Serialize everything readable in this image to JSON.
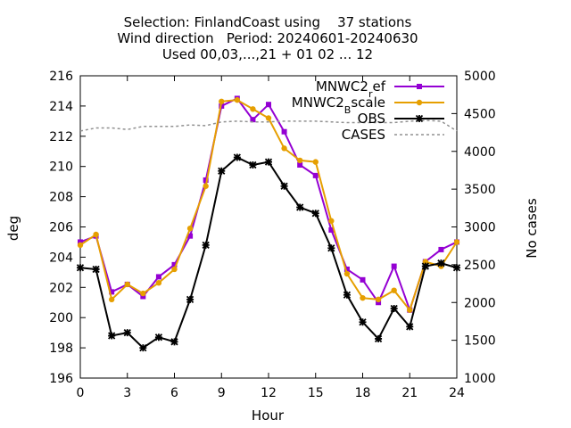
{
  "chart_data": {
    "type": "line",
    "title_lines": [
      "Selection: FinlandCoast using    37 stations",
      "Wind direction   Period: 20240601-20240630",
      "Used 00,03,...,21 + 01 02 ... 12"
    ],
    "xlabel": "Hour",
    "ylabel": "deg",
    "y2label": "No cases",
    "xlim": [
      0,
      24
    ],
    "ylim": [
      196,
      216
    ],
    "y2lim": [
      1000,
      5000
    ],
    "xticks": [
      0,
      3,
      6,
      9,
      12,
      15,
      18,
      21,
      24
    ],
    "yticks": [
      196,
      198,
      200,
      202,
      204,
      206,
      208,
      210,
      212,
      214,
      216
    ],
    "y2ticks": [
      1000,
      1500,
      2000,
      2500,
      3000,
      3500,
      4000,
      4500,
      5000
    ],
    "legend_position": "top-right",
    "x": [
      0,
      1,
      2,
      3,
      4,
      5,
      6,
      7,
      8,
      9,
      10,
      11,
      12,
      13,
      14,
      15,
      16,
      17,
      18,
      19,
      20,
      21,
      22,
      23,
      24
    ],
    "series": [
      {
        "name": "MNWC2_ref",
        "legend_main": "MNWC2",
        "legend_sub": "r",
        "legend_tail": "ef",
        "color": "#9400d3",
        "marker": "square",
        "axis": "y",
        "values": [
          205.0,
          205.4,
          201.7,
          202.2,
          201.4,
          202.7,
          203.5,
          205.4,
          209.1,
          214.0,
          214.5,
          213.1,
          214.1,
          212.3,
          210.1,
          209.4,
          205.8,
          203.2,
          202.5,
          201.0,
          203.4,
          200.5,
          203.7,
          204.5,
          205.0
        ]
      },
      {
        "name": "MNWC2_Bscale",
        "legend_main": "MNWC2",
        "legend_sub": "B",
        "legend_tail": "scale",
        "color": "#e69f00",
        "marker": "circle",
        "axis": "y",
        "values": [
          204.8,
          205.5,
          201.2,
          202.2,
          201.6,
          202.3,
          203.2,
          205.9,
          208.7,
          214.3,
          214.4,
          213.8,
          213.2,
          211.2,
          210.4,
          210.3,
          206.4,
          202.9,
          201.3,
          201.2,
          201.8,
          200.5,
          203.7,
          203.4,
          205.0
        ]
      },
      {
        "name": "OBS",
        "legend_main": "OBS",
        "legend_sub": "",
        "legend_tail": "",
        "color": "#000000",
        "marker": "star",
        "axis": "y",
        "values": [
          203.3,
          203.2,
          198.8,
          199.0,
          198.0,
          198.7,
          198.4,
          201.2,
          204.8,
          209.7,
          210.6,
          210.1,
          210.3,
          208.7,
          207.3,
          206.9,
          204.6,
          201.5,
          199.7,
          198.6,
          200.6,
          199.4,
          203.4,
          203.6,
          203.3
        ]
      },
      {
        "name": "CASES",
        "legend_main": "CASES",
        "legend_sub": "",
        "legend_tail": "",
        "color": "#909090",
        "marker": "none",
        "dashed": true,
        "axis": "y2",
        "values": [
          4270,
          4310,
          4310,
          4290,
          4330,
          4330,
          4330,
          4350,
          4340,
          4390,
          4400,
          4390,
          4390,
          4400,
          4400,
          4400,
          4390,
          4380,
          4380,
          4380,
          4380,
          4400,
          4410,
          4400,
          4270
        ]
      }
    ]
  }
}
